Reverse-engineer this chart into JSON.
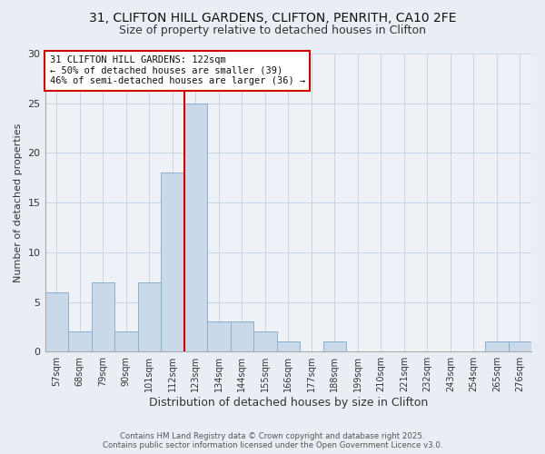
{
  "title1": "31, CLIFTON HILL GARDENS, CLIFTON, PENRITH, CA10 2FE",
  "title2": "Size of property relative to detached houses in Clifton",
  "xlabel": "Distribution of detached houses by size in Clifton",
  "ylabel": "Number of detached properties",
  "bar_labels": [
    "57sqm",
    "68sqm",
    "79sqm",
    "90sqm",
    "101sqm",
    "112sqm",
    "123sqm",
    "134sqm",
    "144sqm",
    "155sqm",
    "166sqm",
    "177sqm",
    "188sqm",
    "199sqm",
    "210sqm",
    "221sqm",
    "232sqm",
    "243sqm",
    "254sqm",
    "265sqm",
    "276sqm"
  ],
  "bar_values": [
    6,
    2,
    7,
    2,
    7,
    18,
    25,
    3,
    3,
    2,
    1,
    0,
    1,
    0,
    0,
    0,
    0,
    0,
    0,
    1,
    1
  ],
  "bar_color": "#c9d9ea",
  "bar_edge_color": "#8ab0cc",
  "ylim": [
    0,
    30
  ],
  "yticks": [
    0,
    5,
    10,
    15,
    20,
    25,
    30
  ],
  "red_line_x": 5.5,
  "annotation_title": "31 CLIFTON HILL GARDENS: 122sqm",
  "annotation_line1": "← 50% of detached houses are smaller (39)",
  "annotation_line2": "46% of semi-detached houses are larger (36) →",
  "annotation_box_color": "#ffffff",
  "annotation_box_edge": "#cc0000",
  "footer1": "Contains HM Land Registry data © Crown copyright and database right 2025.",
  "footer2": "Contains public sector information licensed under the Open Government Licence v3.0.",
  "background_color": "#e8eef4",
  "plot_background": "#eef2f7",
  "grid_color": "#c8d4e0"
}
